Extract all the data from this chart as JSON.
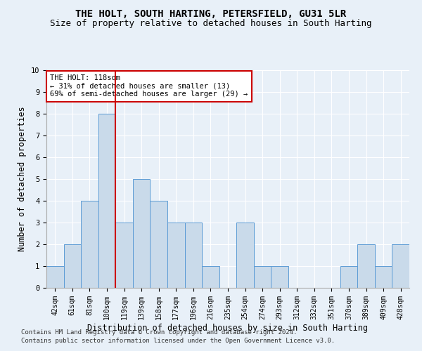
{
  "title": "THE HOLT, SOUTH HARTING, PETERSFIELD, GU31 5LR",
  "subtitle": "Size of property relative to detached houses in South Harting",
  "xlabel": "Distribution of detached houses by size in South Harting",
  "ylabel": "Number of detached properties",
  "categories": [
    "42sqm",
    "61sqm",
    "81sqm",
    "100sqm",
    "119sqm",
    "139sqm",
    "158sqm",
    "177sqm",
    "196sqm",
    "216sqm",
    "235sqm",
    "254sqm",
    "274sqm",
    "293sqm",
    "312sqm",
    "332sqm",
    "351sqm",
    "370sqm",
    "389sqm",
    "409sqm",
    "428sqm"
  ],
  "values": [
    1,
    2,
    4,
    8,
    3,
    5,
    4,
    3,
    3,
    1,
    0,
    3,
    1,
    1,
    0,
    0,
    0,
    1,
    2,
    1,
    2
  ],
  "bar_color": "#c9daea",
  "bar_edge_color": "#5b9bd5",
  "red_line_index": 3,
  "annotation_text": "THE HOLT: 118sqm\n← 31% of detached houses are smaller (13)\n69% of semi-detached houses are larger (29) →",
  "annotation_box_color": "#ffffff",
  "annotation_box_edge": "#cc0000",
  "red_line_color": "#cc0000",
  "ylim": [
    0,
    10
  ],
  "yticks": [
    0,
    1,
    2,
    3,
    4,
    5,
    6,
    7,
    8,
    9,
    10
  ],
  "footer_line1": "Contains HM Land Registry data © Crown copyright and database right 2024.",
  "footer_line2": "Contains public sector information licensed under the Open Government Licence v3.0.",
  "background_color": "#e8f0f8",
  "plot_bg_color": "#e8f0f8",
  "title_fontsize": 10,
  "subtitle_fontsize": 9,
  "tick_fontsize": 7,
  "xlabel_fontsize": 8.5,
  "ylabel_fontsize": 8.5,
  "footer_fontsize": 6.5
}
